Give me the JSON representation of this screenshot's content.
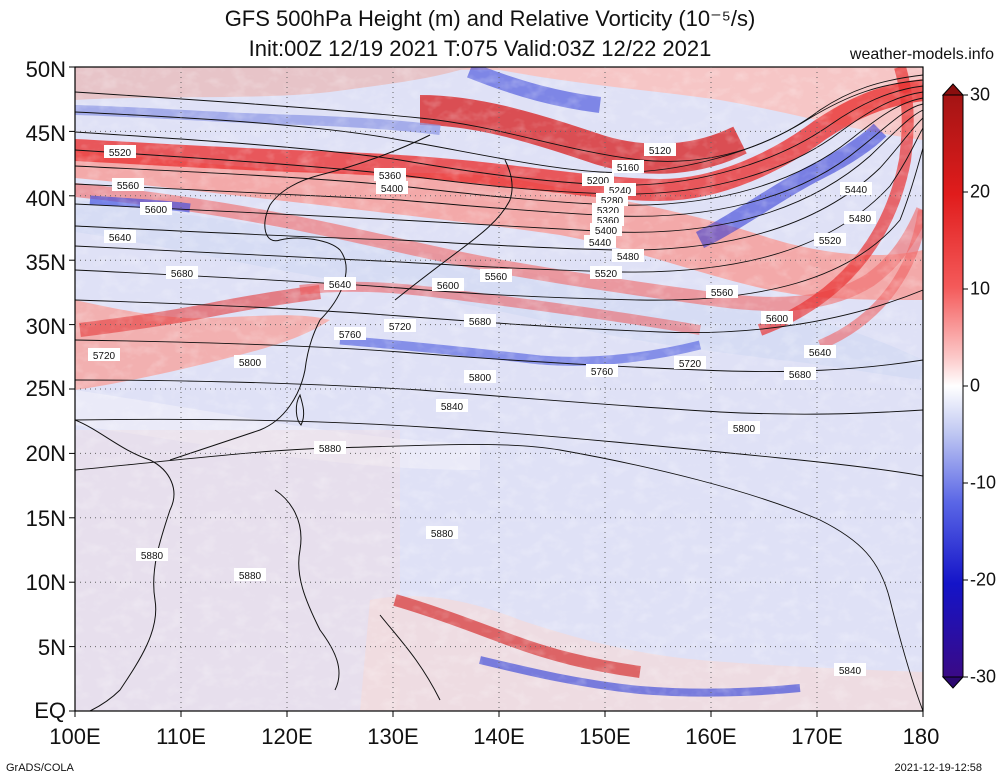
{
  "title_line1": "GFS 500hPa Height (m) and Relative Vorticity (10⁻⁵/s)",
  "title_line2": "Init:00Z 12/19 2021 T:075 Valid:03Z 12/22 2021",
  "site": "weather-models.info",
  "footer_left": "GrADS/COLA",
  "footer_right": "2021-12-19-12:58",
  "lat_labels": [
    "50N",
    "45N",
    "40N",
    "35N",
    "30N",
    "25N",
    "20N",
    "15N",
    "10N",
    "5N",
    "EQ"
  ],
  "lon_labels": [
    "100E",
    "110E",
    "120E",
    "130E",
    "140E",
    "150E",
    "160E",
    "170E",
    "180"
  ],
  "colorbar": {
    "ticks": [
      "30",
      "20",
      "10",
      "0",
      "-10",
      "-20",
      "-30"
    ],
    "colors_top_to_bottom": [
      "#b01818",
      "#e02020",
      "#f26060",
      "#fbb8b8",
      "#ffffff",
      "#b8c4f2",
      "#5a6ae8",
      "#1a1ad0",
      "#3a0a8a"
    ]
  },
  "contour_labels": [
    "5120",
    "5160",
    "5200",
    "5240",
    "5280",
    "5320",
    "5360",
    "5400",
    "5440",
    "5480",
    "5520",
    "5560",
    "5600",
    "5640",
    "5680",
    "5720",
    "5760",
    "5800",
    "5840",
    "5880"
  ]
}
